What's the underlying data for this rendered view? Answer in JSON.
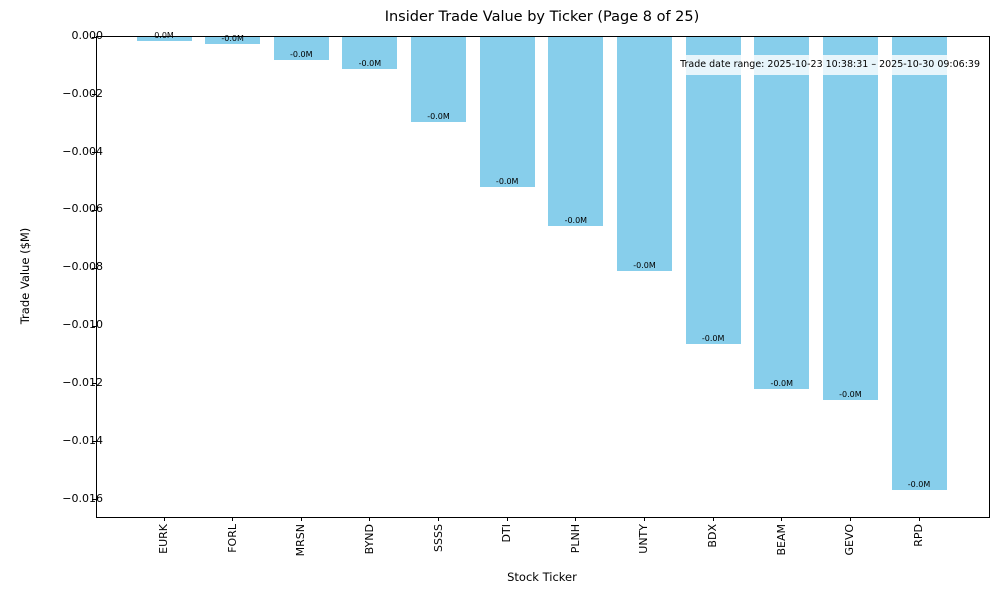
{
  "chart_data": {
    "type": "bar",
    "title": "Insider Trade Value by Ticker (Page 8 of 25)",
    "xlabel": "Stock Ticker",
    "ylabel": "Trade Value ($M)",
    "categories": [
      "EURK",
      "FORL",
      "MRSN",
      "BYND",
      "SSSS",
      "DTI",
      "PLNH",
      "UNTY",
      "BDX",
      "BEAM",
      "GEVO",
      "RPD"
    ],
    "values": [
      -0.00015,
      -0.00025,
      -0.0008,
      -0.00112,
      -0.00295,
      -0.0052,
      -0.00655,
      -0.0081,
      -0.0106,
      -0.01217,
      -0.01255,
      -0.01568
    ],
    "bar_value_labels": [
      "0.0M",
      "-0.0M",
      "-0.0M",
      "-0.0M",
      "-0.0M",
      "-0.0M",
      "-0.0M",
      "-0.0M",
      "-0.0M",
      "-0.0M",
      "-0.0M",
      "-0.0M"
    ],
    "y_tick_values": [
      0,
      -0.002,
      -0.004,
      -0.006,
      -0.008,
      -0.01,
      -0.012,
      -0.014,
      -0.016
    ],
    "y_tick_labels": [
      "0.000",
      "−0.002",
      "−0.004",
      "−0.006",
      "−0.008",
      "−0.010",
      "−0.012",
      "−0.014",
      "−0.016"
    ],
    "ylim": [
      -0.0166,
      0
    ],
    "grid": false,
    "legend_position": "none",
    "bar_color": "#87ceeb",
    "annotation": "Trade date range: 2025-10-23 10:38:31 – 2025-10-30 09:06:39"
  }
}
